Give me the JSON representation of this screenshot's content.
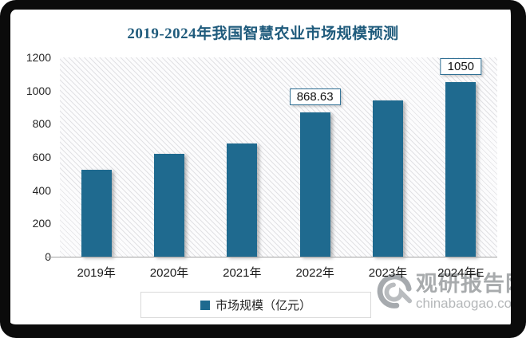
{
  "chart_data": {
    "type": "bar",
    "title": "2019-2024年我国智慧农业市场规模预测",
    "categories": [
      "2019年",
      "2020年",
      "2021年",
      "2022年",
      "2023年",
      "2024年E"
    ],
    "series": [
      {
        "name": "市场规模（亿元）",
        "values": [
          525,
          620,
          680,
          868.63,
          940,
          1050
        ]
      }
    ],
    "data_labels": [
      "",
      "",
      "",
      "868.63",
      "",
      "1050"
    ],
    "xlabel": "",
    "ylabel": "",
    "ylim": [
      0,
      1200
    ],
    "yticks": [
      0,
      200,
      400,
      600,
      800,
      1000,
      1200
    ],
    "grid": false,
    "legend_position": "bottom",
    "plot_background": "diagonal-hatch"
  },
  "legend": {
    "label": "市场规模（亿元）"
  },
  "watermark": {
    "name": "观研报告网",
    "url": "chinabaogao.com"
  },
  "colors": {
    "bar": "#1F6A8F",
    "title": "#1F5B7C",
    "label_box_border": "#2E6E93",
    "axis_line": "#a3a3a3",
    "frame": "#0b0b0b",
    "watermark_gray": "#a8abad"
  }
}
